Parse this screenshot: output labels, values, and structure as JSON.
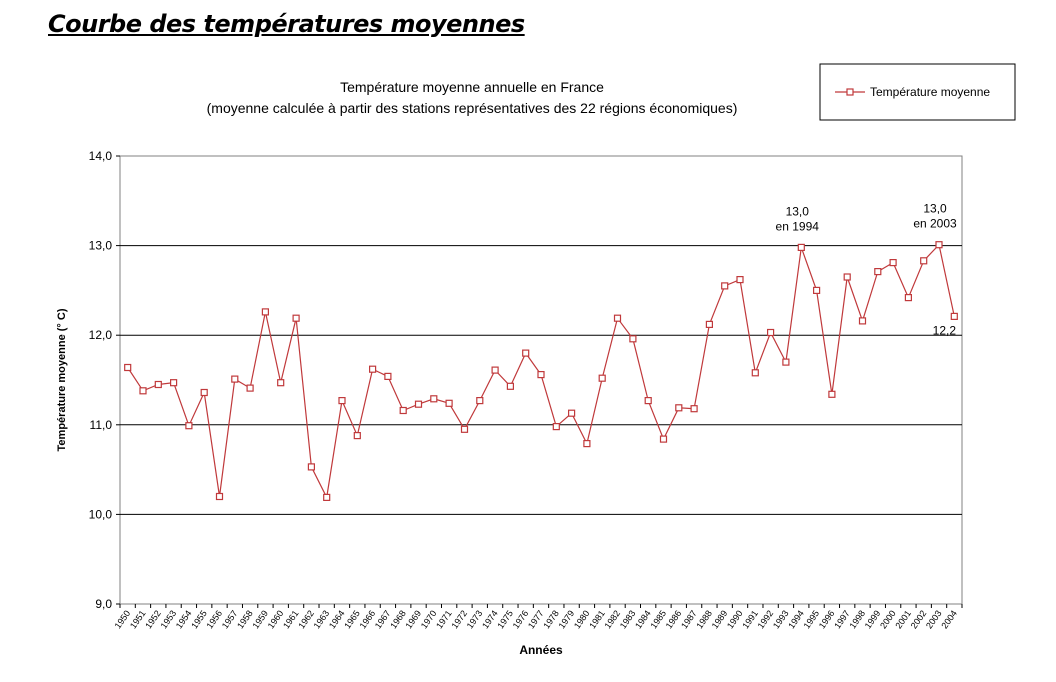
{
  "page_heading": "Courbe des températures moyennes",
  "colors": {
    "series": "#c0393b",
    "grid": "#000000",
    "plot_bg": "#ffffff"
  },
  "chart_data": {
    "type": "line",
    "title": "Température moyenne annuelle en France",
    "subtitle": "(moyenne calculée à partir des stations représentatives des 22 régions économiques)",
    "xlabel": "Années",
    "ylabel": "Température moyenne (° C)",
    "ylim": [
      9.0,
      14.0
    ],
    "yticks": [
      "9,0",
      "10,0",
      "11,0",
      "12,0",
      "13,0",
      "14,0"
    ],
    "grid": "horizontal major",
    "legend": {
      "position": "top-right",
      "entries": [
        "Température moyenne"
      ]
    },
    "categories": [
      "1950",
      "1951",
      "1952",
      "1953",
      "1954",
      "1955",
      "1956",
      "1957",
      "1958",
      "1959",
      "1960",
      "1961",
      "1962",
      "1963",
      "1964",
      "1965",
      "1966",
      "1967",
      "1968",
      "1969",
      "1970",
      "1971",
      "1972",
      "1973",
      "1974",
      "1975",
      "1976",
      "1977",
      "1978",
      "1979",
      "1980",
      "1981",
      "1982",
      "1983",
      "1984",
      "1985",
      "1986",
      "1987",
      "1988",
      "1989",
      "1990",
      "1991",
      "1992",
      "1993",
      "1994",
      "1995",
      "1996",
      "1997",
      "1998",
      "1999",
      "2000",
      "2001",
      "2002",
      "2003",
      "2004"
    ],
    "series": [
      {
        "name": "Température moyenne",
        "values": [
          11.64,
          11.38,
          11.45,
          11.47,
          10.99,
          11.36,
          10.2,
          11.51,
          11.41,
          12.26,
          11.47,
          12.19,
          10.53,
          10.19,
          11.27,
          10.88,
          11.62,
          11.54,
          11.16,
          11.23,
          11.29,
          11.24,
          10.95,
          11.27,
          11.61,
          11.43,
          11.8,
          11.56,
          10.98,
          11.13,
          10.79,
          11.52,
          12.19,
          11.96,
          11.27,
          10.84,
          11.19,
          11.18,
          12.12,
          12.55,
          12.62,
          11.58,
          12.03,
          11.7,
          12.98,
          12.5,
          11.34,
          12.65,
          12.16,
          12.71,
          12.81,
          12.42,
          12.83,
          13.01,
          12.21
        ]
      }
    ],
    "annotations": [
      {
        "category": "1994",
        "lines": [
          "13,0",
          "en 1994"
        ]
      },
      {
        "category": "2003",
        "lines": [
          "13,0",
          "en 2003"
        ]
      },
      {
        "category": "2004",
        "lines": [
          "12,2"
        ]
      }
    ]
  }
}
